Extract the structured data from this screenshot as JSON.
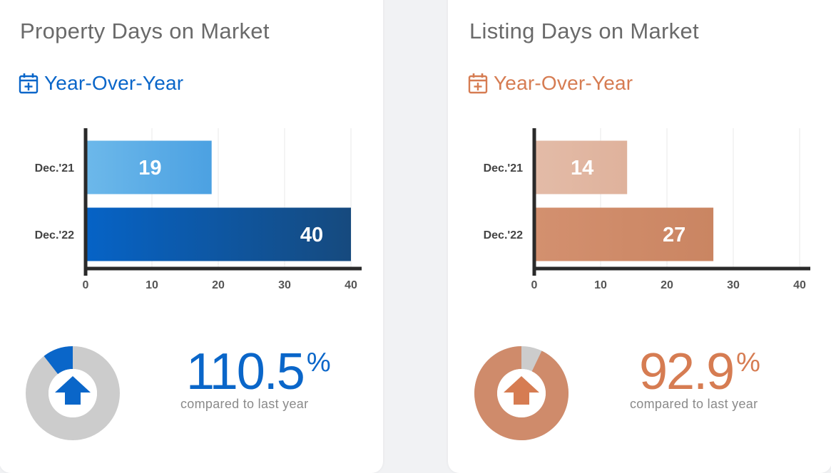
{
  "colors": {
    "blue": "#0a66c9",
    "blue_light": "#5aaee6",
    "blue_dark": "#154a80",
    "orange": "#d67c52",
    "orange_light": "#e1b9a5",
    "orange_mid": "#cf8b6b",
    "axis": "#2a2a2a",
    "grid": "#e8e8e8",
    "donut_grey": "#cccccc"
  },
  "panels": [
    {
      "title": "Property Days on Market",
      "period_label": "Year-Over-Year",
      "calendar_icon": "calendar-plus-icon",
      "percent_value": "110.5",
      "percent_sign": "%",
      "compared_text": "compared to last year",
      "direction_icon": "arrow-up-icon",
      "donut_fraction": 0.105
    },
    {
      "title": "Listing Days on Market",
      "period_label": "Year-Over-Year",
      "calendar_icon": "calendar-plus-icon",
      "percent_value": "92.9",
      "percent_sign": "%",
      "compared_text": "compared to last year",
      "direction_icon": "arrow-up-icon",
      "donut_fraction": 0.929
    }
  ],
  "chart_data": [
    {
      "type": "bar",
      "orientation": "horizontal",
      "categories": [
        "Dec.'21",
        "Dec.'22"
      ],
      "values": [
        19,
        40
      ],
      "data_labels": [
        "19",
        "40"
      ],
      "xlim": [
        0,
        40
      ],
      "xticks": [
        "0",
        "10",
        "20",
        "30",
        "40"
      ],
      "grid": true
    },
    {
      "type": "bar",
      "orientation": "horizontal",
      "categories": [
        "Dec.'21",
        "Dec.'22"
      ],
      "values": [
        14,
        27
      ],
      "data_labels": [
        "14",
        "27"
      ],
      "xlim": [
        0,
        40
      ],
      "xticks": [
        "0",
        "10",
        "20",
        "30",
        "40"
      ],
      "grid": true
    }
  ]
}
